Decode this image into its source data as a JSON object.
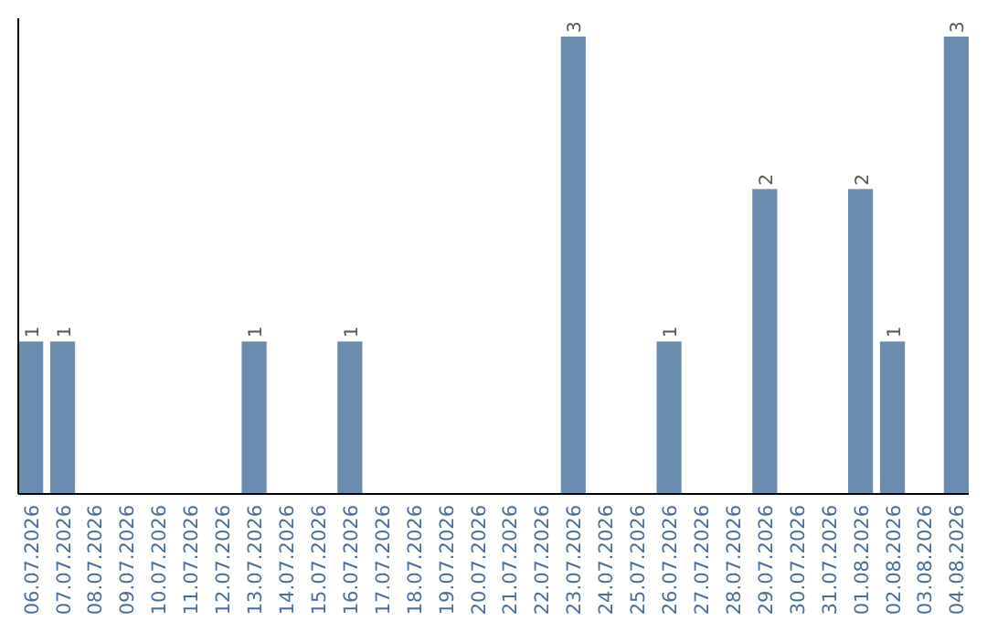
{
  "chart_data": {
    "type": "bar",
    "categories": [
      "06.07.2026",
      "07.07.2026",
      "08.07.2026",
      "09.07.2026",
      "10.07.2026",
      "11.07.2026",
      "12.07.2026",
      "13.07.2026",
      "14.07.2026",
      "15.07.2026",
      "16.07.2026",
      "17.07.2026",
      "18.07.2026",
      "19.07.2026",
      "20.07.2026",
      "21.07.2026",
      "22.07.2026",
      "23.07.2026",
      "24.07.2026",
      "25.07.2026",
      "26.07.2026",
      "27.07.2026",
      "28.07.2026",
      "29.07.2026",
      "30.07.2026",
      "31.07.2026",
      "01.08.2026",
      "02.08.2026",
      "03.08.2026",
      "04.08.2026"
    ],
    "values": [
      1,
      1,
      0,
      0,
      0,
      0,
      0,
      1,
      0,
      0,
      1,
      0,
      0,
      0,
      0,
      0,
      0,
      3,
      0,
      0,
      1,
      0,
      0,
      2,
      0,
      0,
      2,
      1,
      0,
      3
    ],
    "value_labels": [
      "1",
      "1",
      null,
      null,
      null,
      null,
      null,
      "1",
      null,
      null,
      "1",
      null,
      null,
      null,
      null,
      null,
      null,
      "3",
      null,
      null,
      "1",
      null,
      null,
      "2",
      null,
      null,
      "2",
      "1",
      null,
      "3"
    ],
    "color": "#6a8caf",
    "relative": false
  }
}
